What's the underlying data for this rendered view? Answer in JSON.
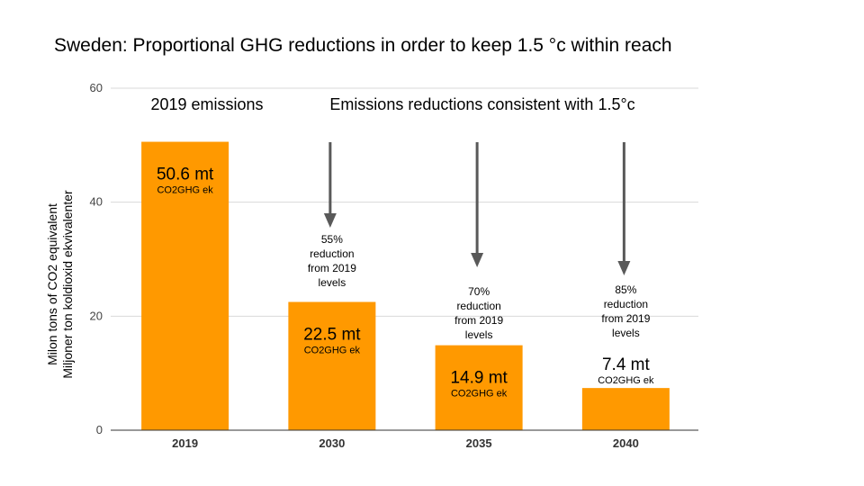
{
  "chart_data": {
    "type": "bar",
    "title": "Sweden: Proportional GHG reductions in order to keep 1.5 °c within reach",
    "xlabel": "",
    "ylabel_lines": [
      "Milon tons of CO2 equivalent",
      "Miljoner ton koldioxid ekvivalenter"
    ],
    "categories": [
      "2019",
      "2030",
      "2035",
      "2040"
    ],
    "values": [
      50.6,
      22.5,
      14.9,
      7.4
    ],
    "ylim": [
      0,
      60
    ],
    "yticks": [
      0,
      20,
      40,
      60
    ],
    "grid": true,
    "bar_color": "#ff9900",
    "grid_color": "#d9d9d9",
    "arrow_color": "#595959",
    "value_labels": [
      {
        "main": "50.6 mt",
        "sub": "CO2GHG ek"
      },
      {
        "main": "22.5 mt",
        "sub": "CO2GHG ek"
      },
      {
        "main": "14.9 mt",
        "sub": "CO2GHG ek"
      },
      {
        "main": "7.4 mt",
        "sub": "CO2GHG ek"
      }
    ],
    "annotations": {
      "left_header": "2019 emissions",
      "right_header": "Emissions reductions consistent with 1.5°c",
      "reductions": [
        null,
        [
          "55%",
          "reduction",
          "from 2019",
          "levels"
        ],
        [
          "70%",
          "reduction",
          "from 2019",
          "levels"
        ],
        [
          "85%",
          "reduction",
          "from 2019",
          "levels"
        ]
      ]
    }
  }
}
